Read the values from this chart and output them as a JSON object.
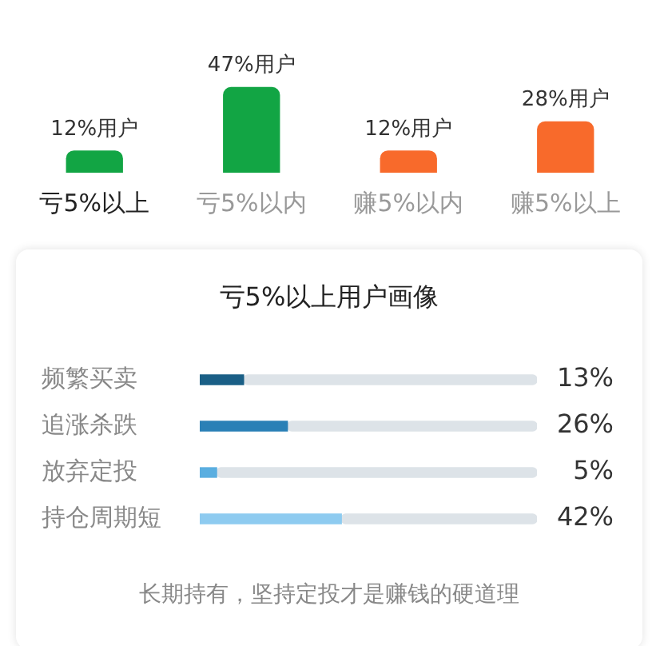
{
  "chart_data": [
    {
      "type": "bar",
      "categories": [
        "亏5%以上",
        "亏5%以内",
        "赚5%以内",
        "赚5%以上"
      ],
      "values": [
        12,
        47,
        12,
        28
      ],
      "colors": [
        "#12a544",
        "#12a544",
        "#f86a2b",
        "#f86a2b"
      ],
      "value_labels": [
        "12%用户",
        "47%用户",
        "12%用户",
        "28%用户"
      ]
    },
    {
      "type": "bar",
      "orientation": "horizontal",
      "title": "亏5%以上用户画像",
      "categories": [
        "频繁买卖",
        "追涨杀跌",
        "放弃定投",
        "持仓周期短"
      ],
      "stacked": true,
      "xlim": [
        0,
        100
      ],
      "series": [
        {
          "colors": [
            "#1a5f86",
            "#2a80b6",
            "#5aaee0",
            "#8ecbf0"
          ],
          "values": [
            13,
            26,
            5,
            42
          ],
          "value_labels": [
            "13%",
            "26%",
            "5%",
            "42%"
          ]
        },
        {
          "color": "#dde3e8",
          "values": [
            87,
            74,
            95,
            58
          ]
        }
      ],
      "annotations": [
        "长期持有，坚持定投才是赚钱的硬道理"
      ]
    }
  ]
}
